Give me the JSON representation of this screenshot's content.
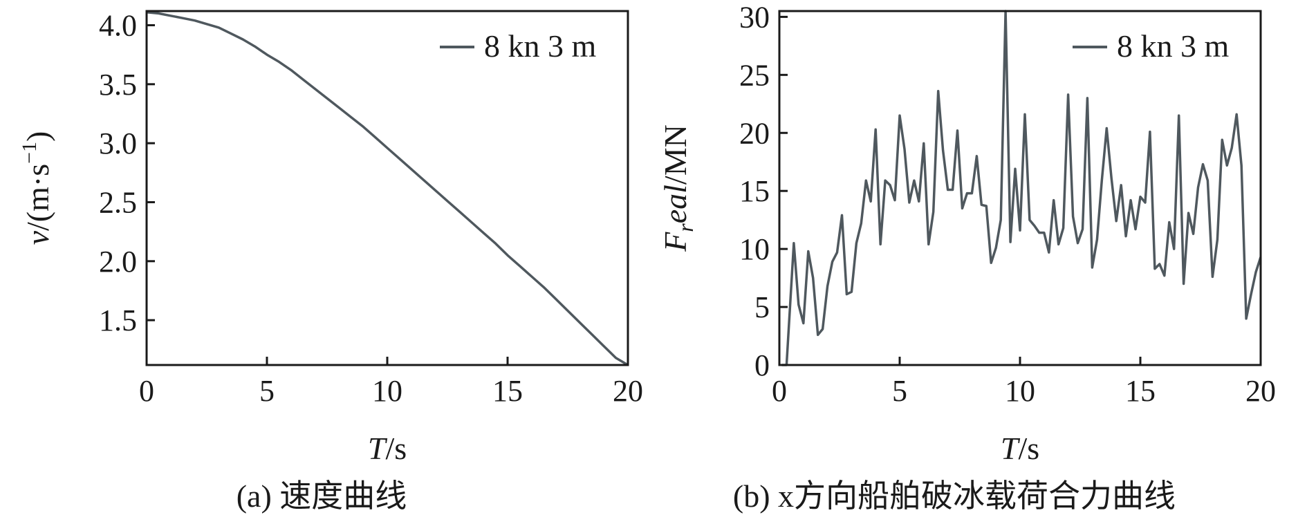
{
  "chart_data": [
    {
      "type": "line",
      "caption": "(a) 速度曲线",
      "xlabel": {
        "italic": "T",
        "rest": "/s"
      },
      "ylabel": {
        "italic": "v",
        "rest": "/(m·s",
        "sup": "−1",
        "close": ")"
      },
      "xlim": [
        0,
        20
      ],
      "ylim": [
        1.12,
        4.12
      ],
      "xticks": [
        0,
        5,
        10,
        15,
        20
      ],
      "yticks": [
        1.5,
        2.0,
        2.5,
        3.0,
        3.5,
        4.0
      ],
      "legend": "top-right",
      "color": "#4f585e",
      "series": [
        {
          "name": "8 kn 3 m",
          "x": [
            0,
            0.5,
            1,
            1.5,
            2,
            2.5,
            3,
            3.5,
            4,
            4.5,
            5,
            5.5,
            6,
            6.5,
            7,
            7.5,
            8,
            8.5,
            9,
            9.5,
            10,
            10.5,
            11,
            11.5,
            12,
            12.5,
            13,
            13.5,
            14,
            14.5,
            15,
            15.5,
            16,
            16.5,
            17,
            17.5,
            18,
            18.5,
            19,
            19.5,
            20
          ],
          "y": [
            4.11,
            4.1,
            4.08,
            4.06,
            4.04,
            4.01,
            3.98,
            3.93,
            3.88,
            3.82,
            3.75,
            3.69,
            3.62,
            3.54,
            3.46,
            3.38,
            3.3,
            3.22,
            3.14,
            3.05,
            2.96,
            2.87,
            2.78,
            2.69,
            2.6,
            2.51,
            2.42,
            2.33,
            2.24,
            2.15,
            2.05,
            1.96,
            1.87,
            1.78,
            1.68,
            1.58,
            1.48,
            1.38,
            1.28,
            1.18,
            1.12
          ]
        }
      ]
    },
    {
      "type": "line",
      "caption": "(b) x方向船舶破冰载荷合力曲线",
      "xlabel": {
        "italic": "T",
        "rest": "/s"
      },
      "ylabel": {
        "main": "F",
        "sub": "r",
        "italic": "eal",
        "rest": "/MN"
      },
      "xlim": [
        0,
        20
      ],
      "ylim": [
        0,
        30.5
      ],
      "xticks": [
        0,
        5,
        10,
        15,
        20
      ],
      "yticks": [
        0,
        5,
        10,
        15,
        20,
        25,
        30
      ],
      "legend": "top-right",
      "color": "#4f585e",
      "series": [
        {
          "name": "8 kn 3 m",
          "x": [
            0.1,
            0.3,
            0.6,
            0.8,
            1.0,
            1.2,
            1.4,
            1.6,
            1.8,
            2.0,
            2.2,
            2.4,
            2.6,
            2.8,
            3.0,
            3.2,
            3.4,
            3.6,
            3.8,
            4.0,
            4.2,
            4.4,
            4.6,
            4.8,
            5.0,
            5.2,
            5.4,
            5.6,
            5.8,
            6.0,
            6.2,
            6.4,
            6.6,
            6.8,
            7.0,
            7.2,
            7.4,
            7.6,
            7.8,
            8.0,
            8.2,
            8.4,
            8.6,
            8.8,
            9.0,
            9.2,
            9.4,
            9.6,
            9.8,
            10.0,
            10.2,
            10.4,
            10.6,
            10.8,
            11.0,
            11.2,
            11.4,
            11.6,
            11.8,
            12.0,
            12.2,
            12.4,
            12.6,
            12.8,
            13.0,
            13.2,
            13.4,
            13.6,
            13.8,
            14.0,
            14.2,
            14.4,
            14.6,
            14.8,
            15.0,
            15.2,
            15.4,
            15.6,
            15.8,
            16.0,
            16.2,
            16.4,
            16.6,
            16.8,
            17.0,
            17.2,
            17.4,
            17.6,
            17.8,
            18.0,
            18.2,
            18.4,
            18.6,
            18.8,
            19.0,
            19.2,
            19.4,
            19.6,
            19.8,
            20.0
          ],
          "y": [
            0,
            0,
            10.5,
            5.2,
            3.6,
            9.8,
            7.5,
            2.6,
            3.1,
            6.8,
            8.9,
            9.7,
            12.9,
            6.1,
            6.3,
            10.5,
            12.2,
            15.9,
            14.1,
            20.3,
            10.4,
            15.9,
            15.5,
            14.2,
            21.5,
            18.6,
            14.0,
            15.9,
            14.1,
            19.1,
            10.4,
            13.2,
            23.6,
            18.5,
            15.1,
            15.1,
            20.2,
            13.5,
            14.8,
            14.8,
            18.0,
            13.8,
            13.7,
            8.8,
            10.1,
            12.5,
            30.5,
            10.6,
            16.9,
            11.6,
            21.6,
            12.5,
            12.0,
            11.4,
            11.4,
            9.7,
            14.2,
            10.4,
            11.8,
            23.3,
            12.8,
            10.5,
            11.7,
            23.0,
            8.4,
            10.8,
            15.9,
            20.4,
            16.1,
            12.4,
            15.5,
            11.1,
            14.2,
            11.7,
            14.5,
            14.0,
            20.1,
            8.3,
            8.7,
            7.7,
            12.3,
            10.0,
            21.5,
            7.0,
            13.1,
            11.3,
            15.3,
            17.3,
            15.9,
            7.6,
            10.8,
            19.4,
            17.2,
            18.7,
            21.6,
            17.2,
            4.0,
            6.1,
            8.0,
            9.3
          ]
        }
      ]
    }
  ]
}
